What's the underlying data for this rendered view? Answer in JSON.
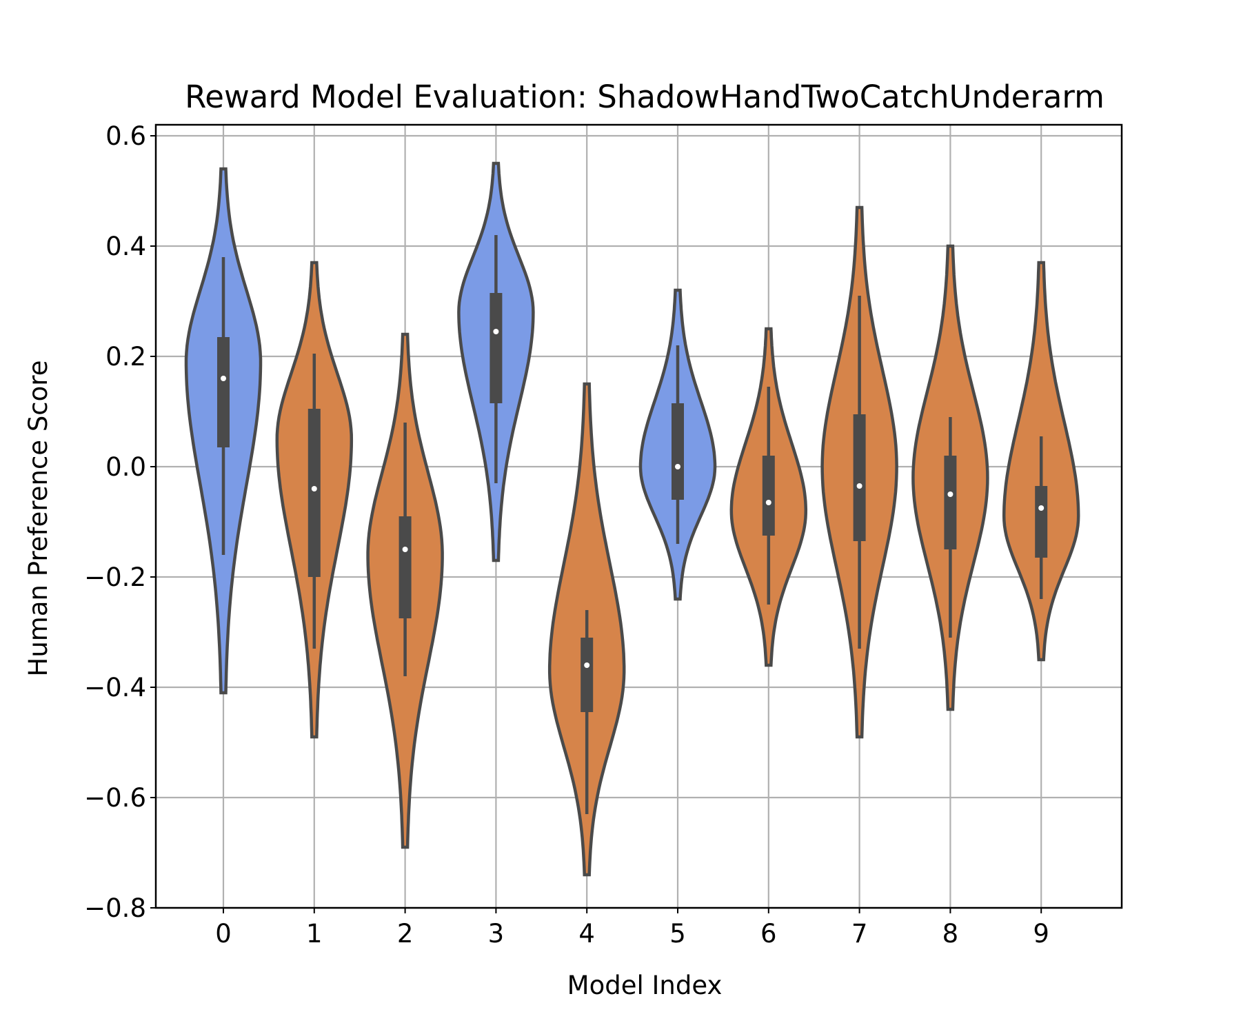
{
  "chart_data": {
    "type": "violin",
    "title": "Reward Model Evaluation: ShadowHandTwoCatchUnderarm",
    "xlabel": "Model Index",
    "ylabel": "Human Preference Score",
    "categories": [
      "0",
      "1",
      "2",
      "3",
      "4",
      "5",
      "6",
      "7",
      "8",
      "9"
    ],
    "ylim": [
      -0.8,
      0.62
    ],
    "yticks": [
      0.6,
      0.4,
      0.2,
      0.0,
      -0.2,
      -0.4,
      -0.6,
      -0.8
    ],
    "ytick_labels": [
      "0.6",
      "0.4",
      "0.2",
      "0.0",
      "−0.2",
      "−0.4",
      "−0.6",
      "−0.8"
    ],
    "grid": true,
    "colors": {
      "blue": "#7b9be6",
      "orange": "#d6844a"
    },
    "series": [
      {
        "category": "0",
        "color": "blue",
        "min": -0.41,
        "max": 0.54,
        "peak": 0.19,
        "q1": 0.035,
        "q3": 0.235,
        "median": 0.16,
        "whisker_low": -0.16,
        "whisker_high": 0.38
      },
      {
        "category": "1",
        "color": "orange",
        "min": -0.49,
        "max": 0.37,
        "peak": 0.05,
        "q1": -0.2,
        "q3": 0.105,
        "median": -0.04,
        "whisker_low": -0.33,
        "whisker_high": 0.205
      },
      {
        "category": "2",
        "color": "orange",
        "min": -0.69,
        "max": 0.24,
        "peak": -0.16,
        "q1": -0.275,
        "q3": -0.09,
        "median": -0.15,
        "whisker_low": -0.38,
        "whisker_high": 0.08
      },
      {
        "category": "3",
        "color": "blue",
        "min": -0.17,
        "max": 0.55,
        "peak": 0.28,
        "q1": 0.115,
        "q3": 0.315,
        "median": 0.245,
        "whisker_low": -0.03,
        "whisker_high": 0.42
      },
      {
        "category": "4",
        "color": "orange",
        "min": -0.74,
        "max": 0.15,
        "peak": -0.37,
        "q1": -0.445,
        "q3": -0.31,
        "median": -0.36,
        "whisker_low": -0.63,
        "whisker_high": -0.26
      },
      {
        "category": "5",
        "color": "blue",
        "min": -0.24,
        "max": 0.32,
        "peak": 0.0,
        "q1": -0.06,
        "q3": 0.115,
        "median": 0.0,
        "whisker_low": -0.14,
        "whisker_high": 0.22
      },
      {
        "category": "6",
        "color": "orange",
        "min": -0.36,
        "max": 0.25,
        "peak": -0.08,
        "q1": -0.125,
        "q3": 0.02,
        "median": -0.065,
        "whisker_low": -0.25,
        "whisker_high": 0.145
      },
      {
        "category": "7",
        "color": "orange",
        "min": -0.49,
        "max": 0.47,
        "peak": 0.0,
        "q1": -0.135,
        "q3": 0.095,
        "median": -0.035,
        "whisker_low": -0.33,
        "whisker_high": 0.31
      },
      {
        "category": "8",
        "color": "orange",
        "min": -0.44,
        "max": 0.4,
        "peak": -0.02,
        "q1": -0.15,
        "q3": 0.02,
        "median": -0.05,
        "whisker_low": -0.31,
        "whisker_high": 0.09
      },
      {
        "category": "9",
        "color": "orange",
        "min": -0.35,
        "max": 0.37,
        "peak": -0.09,
        "q1": -0.165,
        "q3": -0.035,
        "median": -0.075,
        "whisker_low": -0.24,
        "whisker_high": 0.055
      }
    ]
  }
}
